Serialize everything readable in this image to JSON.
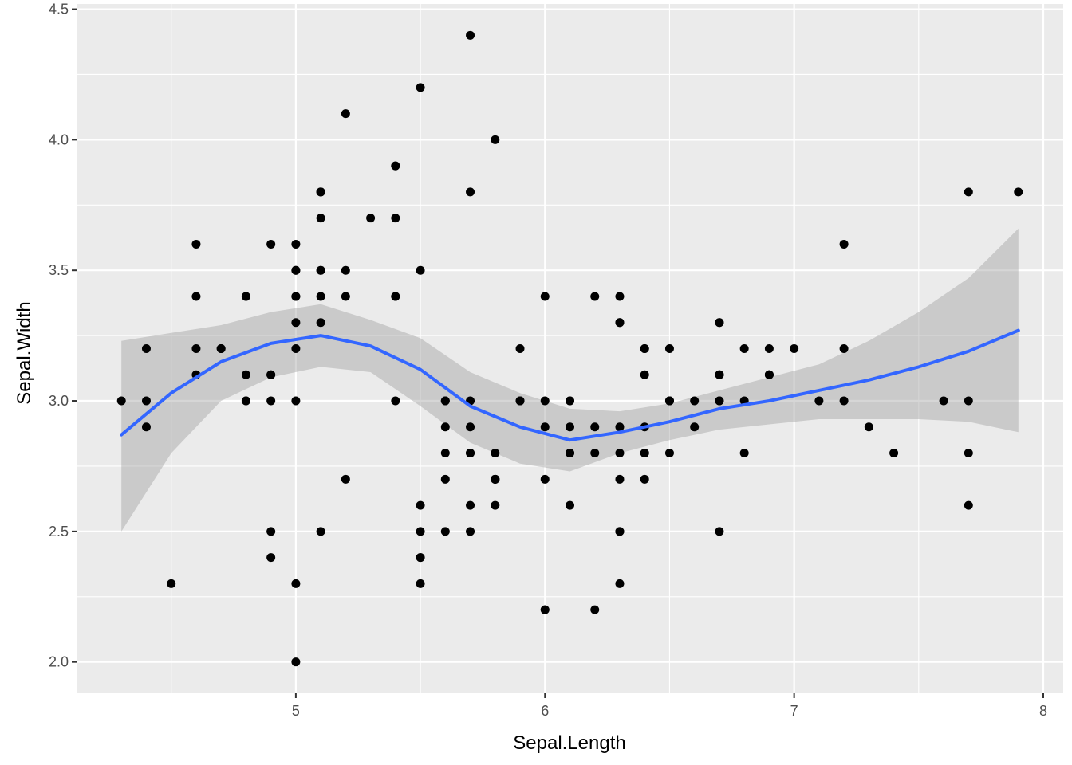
{
  "chart_data": {
    "type": "scatter",
    "title": "",
    "xlabel": "Sepal.Length",
    "ylabel": "Sepal.Width",
    "xlim": [
      4.12,
      8.08
    ],
    "ylim": [
      1.88,
      4.52
    ],
    "x_ticks": [
      5,
      6,
      7,
      8
    ],
    "x_tick_labels": [
      "5",
      "6",
      "7",
      "8"
    ],
    "y_ticks": [
      2.0,
      2.5,
      3.0,
      3.5,
      4.0,
      4.5
    ],
    "y_tick_labels": [
      "2.0",
      "2.5",
      "3.0",
      "3.5",
      "4.0",
      "4.5"
    ],
    "grid": true,
    "legend": "none",
    "points": [
      [
        5.1,
        3.5
      ],
      [
        4.9,
        3.0
      ],
      [
        4.7,
        3.2
      ],
      [
        4.6,
        3.1
      ],
      [
        5.0,
        3.6
      ],
      [
        5.4,
        3.9
      ],
      [
        4.6,
        3.4
      ],
      [
        5.0,
        3.4
      ],
      [
        4.4,
        2.9
      ],
      [
        4.9,
        3.1
      ],
      [
        5.4,
        3.7
      ],
      [
        4.8,
        3.4
      ],
      [
        4.8,
        3.0
      ],
      [
        4.3,
        3.0
      ],
      [
        5.8,
        4.0
      ],
      [
        5.7,
        4.4
      ],
      [
        5.4,
        3.9
      ],
      [
        5.1,
        3.5
      ],
      [
        5.7,
        3.8
      ],
      [
        5.1,
        3.8
      ],
      [
        5.4,
        3.4
      ],
      [
        5.1,
        3.7
      ],
      [
        4.6,
        3.6
      ],
      [
        5.1,
        3.3
      ],
      [
        4.8,
        3.4
      ],
      [
        5.0,
        3.0
      ],
      [
        5.0,
        3.4
      ],
      [
        5.2,
        3.5
      ],
      [
        5.2,
        3.4
      ],
      [
        4.7,
        3.2
      ],
      [
        4.8,
        3.1
      ],
      [
        5.4,
        3.4
      ],
      [
        5.2,
        4.1
      ],
      [
        5.5,
        4.2
      ],
      [
        4.9,
        3.1
      ],
      [
        5.0,
        3.2
      ],
      [
        5.5,
        3.5
      ],
      [
        4.9,
        3.6
      ],
      [
        4.4,
        3.0
      ],
      [
        5.1,
        3.4
      ],
      [
        5.0,
        3.5
      ],
      [
        4.5,
        2.3
      ],
      [
        4.4,
        3.2
      ],
      [
        5.0,
        3.5
      ],
      [
        5.1,
        3.8
      ],
      [
        4.8,
        3.0
      ],
      [
        5.1,
        3.8
      ],
      [
        4.6,
        3.2
      ],
      [
        5.3,
        3.7
      ],
      [
        5.0,
        3.3
      ],
      [
        7.0,
        3.2
      ],
      [
        6.4,
        3.2
      ],
      [
        6.9,
        3.1
      ],
      [
        5.5,
        2.3
      ],
      [
        6.5,
        2.8
      ],
      [
        5.7,
        2.8
      ],
      [
        6.3,
        3.3
      ],
      [
        4.9,
        2.4
      ],
      [
        6.6,
        2.9
      ],
      [
        5.2,
        2.7
      ],
      [
        5.0,
        2.0
      ],
      [
        5.9,
        3.0
      ],
      [
        6.0,
        2.2
      ],
      [
        6.1,
        2.9
      ],
      [
        5.6,
        2.9
      ],
      [
        6.7,
        3.1
      ],
      [
        5.6,
        3.0
      ],
      [
        5.8,
        2.7
      ],
      [
        6.2,
        2.2
      ],
      [
        5.6,
        2.5
      ],
      [
        5.9,
        3.2
      ],
      [
        6.1,
        2.8
      ],
      [
        6.3,
        2.5
      ],
      [
        6.1,
        2.8
      ],
      [
        6.4,
        2.9
      ],
      [
        6.6,
        3.0
      ],
      [
        6.8,
        2.8
      ],
      [
        6.7,
        3.0
      ],
      [
        6.0,
        2.9
      ],
      [
        5.7,
        2.6
      ],
      [
        5.5,
        2.4
      ],
      [
        5.5,
        2.4
      ],
      [
        5.8,
        2.7
      ],
      [
        6.0,
        2.7
      ],
      [
        5.4,
        3.0
      ],
      [
        6.0,
        3.4
      ],
      [
        6.7,
        3.1
      ],
      [
        6.3,
        2.3
      ],
      [
        5.6,
        3.0
      ],
      [
        5.5,
        2.5
      ],
      [
        5.5,
        2.6
      ],
      [
        6.1,
        3.0
      ],
      [
        5.8,
        2.6
      ],
      [
        5.0,
        2.3
      ],
      [
        5.6,
        2.7
      ],
      [
        5.7,
        3.0
      ],
      [
        5.7,
        2.9
      ],
      [
        6.2,
        2.9
      ],
      [
        5.1,
        2.5
      ],
      [
        5.7,
        2.8
      ],
      [
        6.3,
        3.3
      ],
      [
        5.8,
        2.7
      ],
      [
        7.1,
        3.0
      ],
      [
        6.3,
        2.9
      ],
      [
        6.5,
        3.0
      ],
      [
        7.6,
        3.0
      ],
      [
        4.9,
        2.5
      ],
      [
        7.3,
        2.9
      ],
      [
        6.7,
        2.5
      ],
      [
        7.2,
        3.6
      ],
      [
        6.5,
        3.2
      ],
      [
        6.4,
        2.7
      ],
      [
        6.8,
        3.0
      ],
      [
        5.7,
        2.5
      ],
      [
        5.8,
        2.8
      ],
      [
        6.4,
        3.2
      ],
      [
        6.5,
        3.0
      ],
      [
        7.7,
        3.8
      ],
      [
        7.7,
        2.6
      ],
      [
        6.0,
        2.2
      ],
      [
        6.9,
        3.2
      ],
      [
        5.6,
        2.8
      ],
      [
        7.7,
        2.8
      ],
      [
        6.3,
        2.7
      ],
      [
        6.7,
        3.3
      ],
      [
        7.2,
        3.2
      ],
      [
        6.2,
        2.8
      ],
      [
        6.1,
        3.0
      ],
      [
        6.4,
        2.8
      ],
      [
        7.2,
        3.0
      ],
      [
        7.4,
        2.8
      ],
      [
        7.9,
        3.8
      ],
      [
        6.4,
        2.8
      ],
      [
        6.3,
        2.8
      ],
      [
        6.1,
        2.6
      ],
      [
        7.7,
        3.0
      ],
      [
        6.3,
        3.4
      ],
      [
        6.4,
        3.1
      ],
      [
        6.0,
        3.0
      ],
      [
        6.9,
        3.1
      ],
      [
        6.7,
        3.1
      ],
      [
        6.9,
        3.1
      ],
      [
        5.8,
        2.7
      ],
      [
        6.8,
        3.2
      ],
      [
        6.7,
        3.3
      ],
      [
        6.7,
        3.0
      ],
      [
        6.3,
        2.5
      ],
      [
        6.5,
        3.0
      ],
      [
        6.2,
        3.4
      ],
      [
        5.9,
        3.0
      ]
    ],
    "smooth": {
      "method": "loess",
      "x": [
        4.3,
        4.5,
        4.7,
        4.9,
        5.1,
        5.3,
        5.5,
        5.7,
        5.9,
        6.1,
        6.3,
        6.5,
        6.7,
        6.9,
        7.1,
        7.3,
        7.5,
        7.7,
        7.9
      ],
      "y": [
        2.87,
        3.03,
        3.15,
        3.22,
        3.25,
        3.21,
        3.12,
        2.98,
        2.9,
        2.85,
        2.88,
        2.92,
        2.97,
        3.0,
        3.04,
        3.08,
        3.13,
        3.19,
        3.27
      ],
      "ci_lower": [
        2.5,
        2.8,
        3.0,
        3.09,
        3.13,
        3.11,
        2.98,
        2.84,
        2.76,
        2.73,
        2.8,
        2.85,
        2.89,
        2.91,
        2.93,
        2.93,
        2.93,
        2.92,
        2.88
      ],
      "ci_upper": [
        3.23,
        3.26,
        3.29,
        3.34,
        3.37,
        3.31,
        3.24,
        3.11,
        3.03,
        2.97,
        2.96,
        2.99,
        3.04,
        3.09,
        3.14,
        3.23,
        3.34,
        3.47,
        3.66
      ]
    },
    "colors": {
      "panel": "#ebebeb",
      "grid_major": "#ffffff",
      "point": "#000000",
      "smooth_line": "#3366ff",
      "ci_band": "#999999"
    }
  }
}
